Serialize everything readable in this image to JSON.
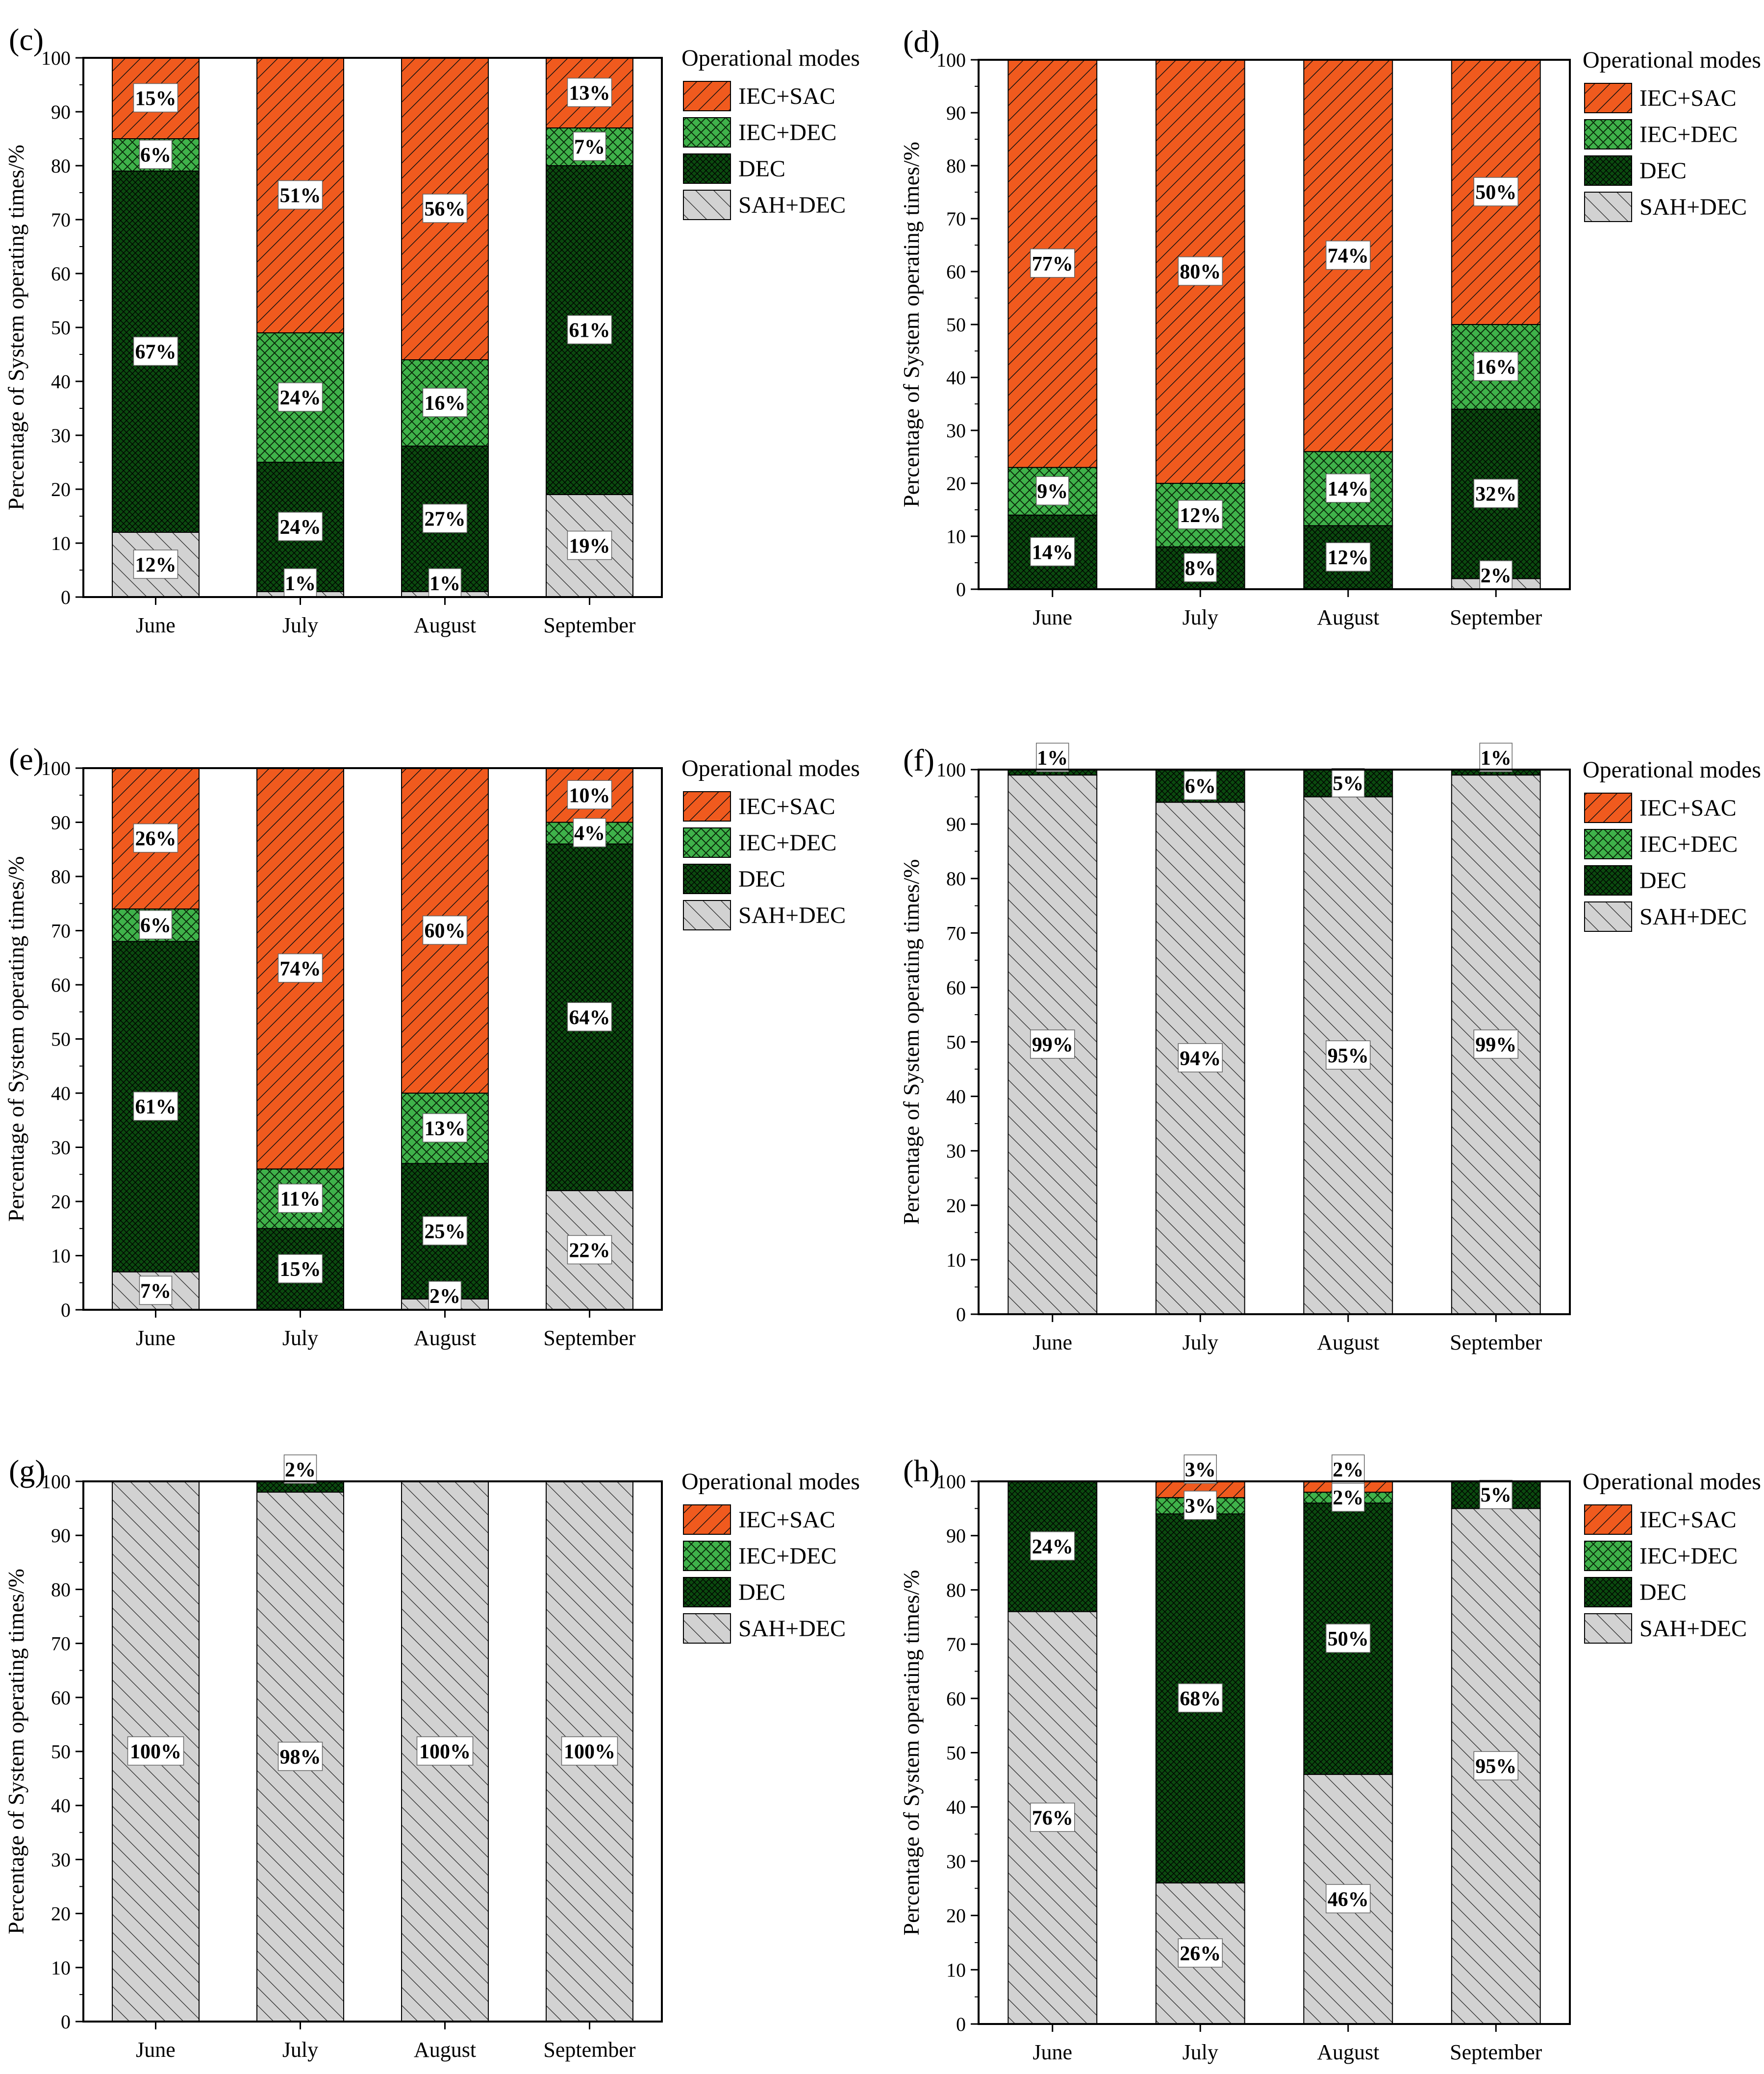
{
  "figure": {
    "ylabel": "Percentage of System operating times/%",
    "legend_title": "Operational modes",
    "modes": [
      "IEC+SAC",
      "IEC+DEC",
      "DEC",
      "SAH+DEC"
    ],
    "colors": {
      "IEC+SAC": "#F05A1E",
      "IEC+DEC": "#3FB24A",
      "DEC": "#0B4A0F",
      "SAH+DEC": "#D2D2D2"
    }
  },
  "chart_data": [
    {
      "type": "bar",
      "stacked": true,
      "panel": "(c)",
      "categories": [
        "June",
        "July",
        "August",
        "September"
      ],
      "ylim": [
        0,
        100
      ],
      "yticks": [
        0,
        10,
        20,
        30,
        40,
        50,
        60,
        70,
        80,
        90,
        100
      ],
      "legend": true,
      "series": [
        {
          "name": "SAH+DEC",
          "values": [
            12,
            1,
            1,
            19
          ],
          "labels": [
            "12%",
            "1%",
            "1%",
            "19%"
          ]
        },
        {
          "name": "DEC",
          "values": [
            67,
            24,
            27,
            61
          ],
          "labels": [
            "67%",
            "24%",
            "27%",
            "61%"
          ]
        },
        {
          "name": "IEC+DEC",
          "values": [
            6,
            24,
            16,
            7
          ],
          "labels": [
            "6%",
            "24%",
            "16%",
            "7%"
          ]
        },
        {
          "name": "IEC+SAC",
          "values": [
            15,
            51,
            56,
            13
          ],
          "labels": [
            "15%",
            "51%",
            "56%",
            "13%"
          ]
        }
      ]
    },
    {
      "type": "bar",
      "stacked": true,
      "panel": "(d)",
      "categories": [
        "June",
        "July",
        "August",
        "September"
      ],
      "ylim": [
        0,
        100
      ],
      "yticks": [
        0,
        10,
        20,
        30,
        40,
        50,
        60,
        70,
        80,
        90,
        100
      ],
      "legend": true,
      "series": [
        {
          "name": "SAH+DEC",
          "values": [
            0,
            0,
            0,
            2
          ],
          "labels": [
            "",
            "",
            "",
            "2%"
          ]
        },
        {
          "name": "DEC",
          "values": [
            14,
            8,
            12,
            32
          ],
          "labels": [
            "14%",
            "8%",
            "12%",
            "32%"
          ]
        },
        {
          "name": "IEC+DEC",
          "values": [
            9,
            12,
            14,
            16
          ],
          "labels": [
            "9%",
            "12%",
            "14%",
            "16%"
          ]
        },
        {
          "name": "IEC+SAC",
          "values": [
            77,
            80,
            74,
            50
          ],
          "labels": [
            "77%",
            "80%",
            "74%",
            "50%"
          ]
        }
      ]
    },
    {
      "type": "bar",
      "stacked": true,
      "panel": "(e)",
      "categories": [
        "June",
        "July",
        "August",
        "September"
      ],
      "ylim": [
        0,
        100
      ],
      "yticks": [
        0,
        10,
        20,
        30,
        40,
        50,
        60,
        70,
        80,
        90,
        100
      ],
      "legend": true,
      "series": [
        {
          "name": "SAH+DEC",
          "values": [
            7,
            0,
            2,
            22
          ],
          "labels": [
            "7%",
            "",
            "2%",
            "22%"
          ]
        },
        {
          "name": "DEC",
          "values": [
            61,
            15,
            25,
            64
          ],
          "labels": [
            "61%",
            "15%",
            "25%",
            "64%"
          ]
        },
        {
          "name": "IEC+DEC",
          "values": [
            6,
            11,
            13,
            4
          ],
          "labels": [
            "6%",
            "11%",
            "13%",
            "4%"
          ]
        },
        {
          "name": "IEC+SAC",
          "values": [
            26,
            74,
            60,
            10
          ],
          "labels": [
            "26%",
            "74%",
            "60%",
            "10%"
          ]
        }
      ]
    },
    {
      "type": "bar",
      "stacked": true,
      "panel": "(f)",
      "categories": [
        "June",
        "July",
        "August",
        "September"
      ],
      "ylim": [
        0,
        100
      ],
      "yticks": [
        0,
        10,
        20,
        30,
        40,
        50,
        60,
        70,
        80,
        90,
        100
      ],
      "legend": true,
      "series": [
        {
          "name": "SAH+DEC",
          "values": [
            99,
            94,
            95,
            99
          ],
          "labels": [
            "99%",
            "94%",
            "95%",
            "99%"
          ]
        },
        {
          "name": "DEC",
          "values": [
            1,
            6,
            5,
            1
          ],
          "labels": [
            "1%",
            "6%",
            "5%",
            "1%"
          ]
        },
        {
          "name": "IEC+DEC",
          "values": [
            0,
            0,
            0,
            0
          ],
          "labels": [
            "",
            "",
            "",
            ""
          ]
        },
        {
          "name": "IEC+SAC",
          "values": [
            0,
            0,
            0,
            0
          ],
          "labels": [
            "",
            "",
            "",
            ""
          ]
        }
      ]
    },
    {
      "type": "bar",
      "stacked": true,
      "panel": "(g)",
      "categories": [
        "June",
        "July",
        "August",
        "September"
      ],
      "ylim": [
        0,
        100
      ],
      "yticks": [
        0,
        10,
        20,
        30,
        40,
        50,
        60,
        70,
        80,
        90,
        100
      ],
      "legend": true,
      "series": [
        {
          "name": "SAH+DEC",
          "values": [
            100,
            98,
            100,
            100
          ],
          "labels": [
            "100%",
            "98%",
            "100%",
            "100%"
          ]
        },
        {
          "name": "DEC",
          "values": [
            0,
            2,
            0,
            0
          ],
          "labels": [
            "",
            "2%",
            "",
            ""
          ]
        },
        {
          "name": "IEC+DEC",
          "values": [
            0,
            0,
            0,
            0
          ],
          "labels": [
            "",
            "",
            "",
            ""
          ]
        },
        {
          "name": "IEC+SAC",
          "values": [
            0,
            0,
            0,
            0
          ],
          "labels": [
            "",
            "",
            "",
            ""
          ]
        }
      ]
    },
    {
      "type": "bar",
      "stacked": true,
      "panel": "(h)",
      "categories": [
        "June",
        "July",
        "August",
        "September"
      ],
      "ylim": [
        0,
        100
      ],
      "yticks": [
        0,
        10,
        20,
        30,
        40,
        50,
        60,
        70,
        80,
        90,
        100
      ],
      "legend": true,
      "series": [
        {
          "name": "SAH+DEC",
          "values": [
            76,
            26,
            46,
            95
          ],
          "labels": [
            "76%",
            "26%",
            "46%",
            "95%"
          ]
        },
        {
          "name": "DEC",
          "values": [
            24,
            68,
            50,
            5
          ],
          "labels": [
            "24%",
            "68%",
            "50%",
            "5%"
          ]
        },
        {
          "name": "IEC+DEC",
          "values": [
            0,
            3,
            2,
            0
          ],
          "labels": [
            "",
            "3%",
            "2%",
            ""
          ]
        },
        {
          "name": "IEC+SAC",
          "values": [
            0,
            3,
            2,
            0
          ],
          "labels": [
            "",
            "3%",
            "2%",
            ""
          ]
        }
      ]
    }
  ]
}
